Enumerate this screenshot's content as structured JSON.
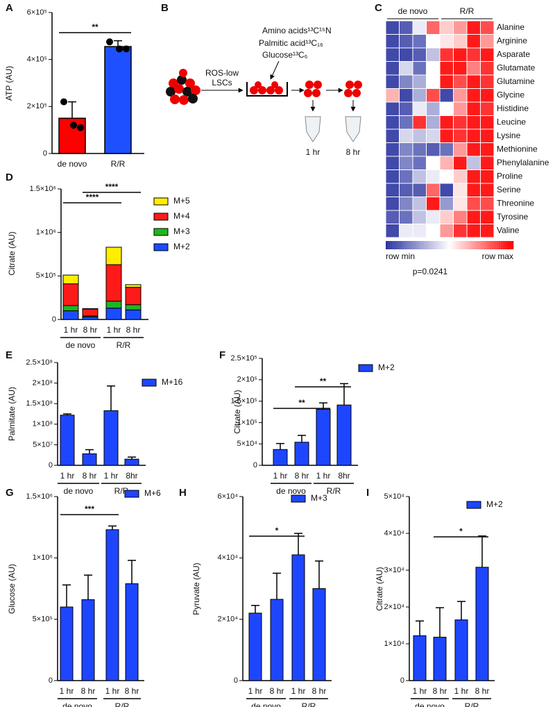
{
  "chart_data": [
    {
      "type": "bar",
      "panel": "A",
      "ylabel": "ATP (AU)",
      "categories": [
        "de novo",
        "R/R"
      ],
      "values": [
        150000,
        455000
      ],
      "errors": [
        70000,
        25000
      ],
      "colors": [
        "#ff0000",
        "#1e50ff"
      ],
      "points": [
        [
          220000,
          120000,
          110000
        ],
        [
          475000,
          445000,
          445000
        ]
      ],
      "ylim": [
        0,
        600000
      ],
      "yticks": [
        0,
        {
          "value": 200000,
          "label": "2×10⁵"
        },
        {
          "value": 400000,
          "label": "4×10⁵"
        },
        {
          "value": 600000,
          "label": "6×10⁵"
        }
      ],
      "annotations": [
        "**"
      ]
    },
    {
      "type": "heatmap",
      "panel": "C",
      "column_groups": [
        "de novo",
        "R/R"
      ],
      "rows": [
        "Alanine",
        "Arginine",
        "Asparate",
        "Glutamate",
        "Glutamine",
        "Glycine",
        "Histidine",
        "Leucine",
        "Lysine",
        "Methionine",
        "Phenylalanine",
        "Proline",
        "Serine",
        "Threonine",
        "Tyrosine",
        "Valine"
      ],
      "values": [
        [
          0.05,
          0.1,
          0.45,
          0.8,
          0.6,
          0.7,
          0.95,
          0.85
        ],
        [
          0.05,
          0.1,
          0.15,
          0.5,
          0.55,
          0.6,
          0.95,
          0.7
        ],
        [
          0.05,
          0.05,
          0.1,
          0.35,
          0.9,
          0.95,
          0.9,
          0.95
        ],
        [
          0.05,
          0.4,
          0.15,
          0.5,
          0.95,
          0.95,
          0.75,
          0.9
        ],
        [
          0.05,
          0.2,
          0.3,
          0.5,
          0.95,
          0.85,
          0.95,
          0.9
        ],
        [
          0.65,
          0.05,
          0.3,
          0.85,
          0.05,
          0.7,
          0.95,
          0.95
        ],
        [
          0.05,
          0.1,
          0.45,
          0.3,
          0.5,
          0.7,
          0.95,
          0.9
        ],
        [
          0.05,
          0.15,
          0.9,
          0.3,
          0.95,
          0.9,
          0.95,
          0.95
        ],
        [
          0.05,
          0.4,
          0.35,
          0.4,
          0.95,
          0.9,
          0.95,
          0.95
        ],
        [
          0.05,
          0.2,
          0.15,
          0.1,
          0.15,
          0.7,
          0.95,
          0.95
        ],
        [
          0.05,
          0.2,
          0.15,
          0.5,
          0.65,
          0.95,
          0.35,
          0.95
        ],
        [
          0.05,
          0.15,
          0.35,
          0.45,
          0.5,
          0.6,
          0.95,
          0.95
        ],
        [
          0.05,
          0.1,
          0.1,
          0.8,
          0.05,
          0.55,
          0.95,
          0.95
        ],
        [
          0.05,
          0.2,
          0.35,
          0.95,
          0.25,
          0.55,
          0.85,
          0.85
        ],
        [
          0.1,
          0.15,
          0.35,
          0.45,
          0.6,
          0.75,
          0.95,
          0.95
        ],
        [
          0.05,
          0.45,
          0.45,
          0.5,
          0.7,
          0.9,
          0.95,
          0.95
        ]
      ],
      "colorscale": [
        "#2c35a0",
        "#ffffff",
        "#ff0000"
      ],
      "legend_labels": [
        "row min",
        "row max"
      ],
      "annotation": "p=0.0241"
    },
    {
      "type": "stacked_bar",
      "panel": "D",
      "ylabel": "Citrate (AU)",
      "categories": [
        "1 hr",
        "8 hr",
        "1 hr",
        "8 hr"
      ],
      "groups": [
        "de novo",
        "R/R"
      ],
      "series": [
        {
          "name": "M+2",
          "color": "#1a4dff",
          "values": [
            100000,
            30000,
            130000,
            110000
          ]
        },
        {
          "name": "M+3",
          "color": "#1fb51f",
          "values": [
            60000,
            10000,
            80000,
            60000
          ]
        },
        {
          "name": "M+4",
          "color": "#ff1a1a",
          "values": [
            250000,
            80000,
            420000,
            200000
          ]
        },
        {
          "name": "M+5",
          "color": "#ffee00",
          "values": [
            100000,
            5000,
            200000,
            30000
          ]
        }
      ],
      "ylim": [
        0,
        1500000
      ],
      "yticks": [
        0,
        {
          "value": 500000,
          "label": "5×10⁵"
        },
        {
          "value": 1000000,
          "label": "1×10⁶"
        },
        {
          "value": 1500000,
          "label": "1.5×10⁶"
        }
      ],
      "annotations": [
        "****",
        "****"
      ]
    },
    {
      "type": "bar",
      "panel": "E",
      "ylabel": "Palmitate (AU)",
      "categories": [
        "1 hr",
        "8 hr",
        "1 hr",
        "8hr"
      ],
      "groups": [
        "de novo",
        "R/R"
      ],
      "series": [
        {
          "name": "M+16",
          "color": "#1e46ff",
          "values": [
            122000000,
            28000000,
            133000000,
            15000000
          ],
          "errors": [
            3000000,
            10000000,
            60000000,
            5000000
          ]
        }
      ],
      "ylim": [
        0,
        250000000
      ],
      "yticks": [
        0,
        {
          "value": 50000000,
          "label": "5×10⁷"
        },
        {
          "value": 100000000,
          "label": "1×10⁸"
        },
        {
          "value": 150000000,
          "label": "1.5×10⁸"
        },
        {
          "value": 200000000,
          "label": "2×10⁸"
        },
        {
          "value": 250000000,
          "label": "2.5×10⁸"
        }
      ]
    },
    {
      "type": "bar",
      "panel": "F",
      "ylabel": "Citrate (AU)",
      "categories": [
        "1 hr",
        "8 hr",
        "1 hr",
        "8hr"
      ],
      "groups": [
        "de novo",
        "R/R"
      ],
      "series": [
        {
          "name": "M+2",
          "color": "#1e46ff",
          "values": [
            37000,
            54000,
            131000,
            141000
          ],
          "errors": [
            14000,
            16000,
            15000,
            50000
          ]
        }
      ],
      "ylim": [
        0,
        250000
      ],
      "yticks": [
        0,
        {
          "value": 50000,
          "label": "5×10⁴"
        },
        {
          "value": 100000,
          "label": "1×10⁵"
        },
        {
          "value": 150000,
          "label": "1.5×10⁵"
        },
        {
          "value": 200000,
          "label": "2×10⁵"
        },
        {
          "value": 250000,
          "label": "2.5×10⁵"
        }
      ],
      "annotations": [
        "**",
        "**"
      ]
    },
    {
      "type": "bar",
      "panel": "G",
      "ylabel": "Glucose (AU)",
      "categories": [
        "1 hr",
        "8 hr",
        "1 hr",
        "8 hr"
      ],
      "groups": [
        "de novo",
        "R/R"
      ],
      "series": [
        {
          "name": "M+6",
          "color": "#1e46ff",
          "values": [
            600000,
            660000,
            1230000,
            790000
          ],
          "errors": [
            180000,
            200000,
            30000,
            190000
          ]
        }
      ],
      "ylim": [
        0,
        1500000
      ],
      "yticks": [
        0,
        {
          "value": 500000,
          "label": "5×10⁵"
        },
        {
          "value": 1000000,
          "label": "1×10⁶"
        },
        {
          "value": 1500000,
          "label": "1.5×10⁶"
        }
      ],
      "annotations": [
        "***"
      ]
    },
    {
      "type": "bar",
      "panel": "H",
      "ylabel": "Pyruvate (AU)",
      "categories": [
        "1 hr",
        "8 hr",
        "1 hr",
        "8 hr"
      ],
      "groups": [
        "de novo",
        "R/R"
      ],
      "series": [
        {
          "name": "M+3",
          "color": "#1e46ff",
          "values": [
            22000,
            26500,
            41000,
            30000
          ],
          "errors": [
            2500,
            8500,
            7000,
            9000
          ]
        }
      ],
      "ylim": [
        0,
        60000
      ],
      "yticks": [
        0,
        {
          "value": 20000,
          "label": "2×10⁴"
        },
        {
          "value": 40000,
          "label": "4×10⁴"
        },
        {
          "value": 60000,
          "label": "6×10⁴"
        }
      ],
      "annotations": [
        "*"
      ]
    },
    {
      "type": "bar",
      "panel": "I",
      "ylabel": "Citrate (AU)",
      "categories": [
        "1 hr",
        "8 hr",
        "1 hr",
        "8 hr"
      ],
      "groups": [
        "de novo",
        "R/R"
      ],
      "series": [
        {
          "name": "M+2",
          "color": "#1e46ff",
          "values": [
            12200,
            11800,
            16500,
            30800
          ],
          "errors": [
            4000,
            8000,
            5000,
            8500
          ]
        }
      ],
      "ylim": [
        0,
        50000
      ],
      "yticks": [
        0,
        {
          "value": 10000,
          "label": "1×10⁴"
        },
        {
          "value": 20000,
          "label": "2×10⁴"
        },
        {
          "value": 30000,
          "label": "3×10⁴"
        },
        {
          "value": 40000,
          "label": "4×10⁴"
        },
        {
          "value": 50000,
          "label": "5×10⁴"
        }
      ],
      "annotations": [
        "*"
      ]
    }
  ],
  "diagram": {
    "panel": "B",
    "tracers": [
      "Amino acids¹³C¹⁵N",
      "Palmitic acid¹³C₁₆",
      "Glucose¹³C₆"
    ],
    "cell_label": [
      "ROS-low",
      "LSCs"
    ],
    "timepoints": [
      "1 hr",
      "8 hr"
    ]
  }
}
